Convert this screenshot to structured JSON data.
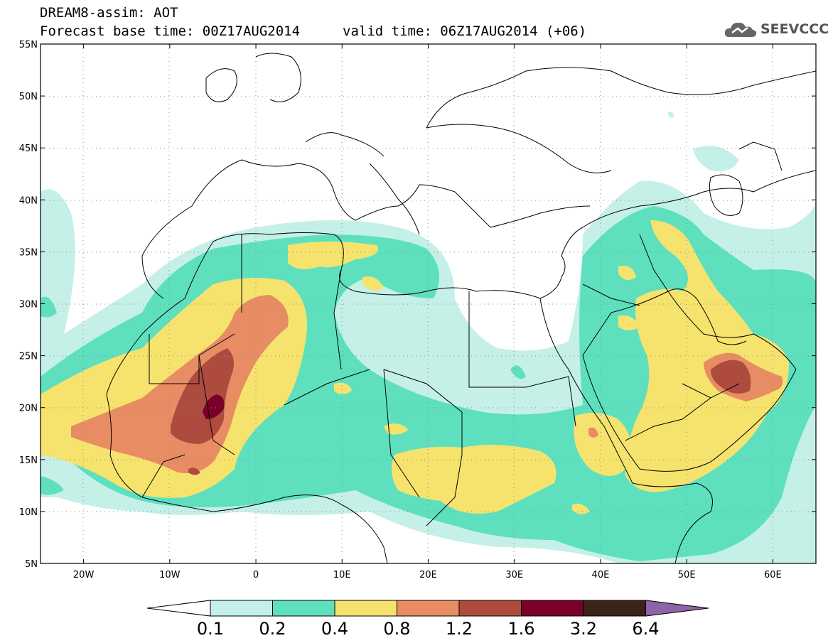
{
  "title": {
    "line1": "DREAM8-assim: AOT",
    "line2": "Forecast base time: 00Z17AUG2014",
    "valid": "valid time: 06Z17AUG2014 (+06)"
  },
  "logo": {
    "text": "SEEVCCC",
    "icon": "cloud-icon"
  },
  "map": {
    "lat_ticks": [
      "55N",
      "50N",
      "45N",
      "40N",
      "35N",
      "30N",
      "25N",
      "20N",
      "15N",
      "10N",
      "5N"
    ],
    "lat_values": [
      55,
      50,
      45,
      40,
      35,
      30,
      25,
      20,
      15,
      10,
      5
    ],
    "lon_ticks": [
      "20W",
      "10W",
      "0",
      "10E",
      "20E",
      "30E",
      "40E",
      "50E",
      "60E"
    ],
    "lon_values": [
      -20,
      -10,
      0,
      10,
      20,
      30,
      40,
      50,
      60
    ],
    "lon_range": [
      -25,
      65
    ],
    "lat_range": [
      5,
      55
    ]
  },
  "colorbar": {
    "labels": [
      "0.1",
      "0.2",
      "0.4",
      "0.8",
      "1.2",
      "1.6",
      "3.2",
      "6.4"
    ],
    "colors": [
      "#ffffff",
      "#c4f0e8",
      "#5ee0bf",
      "#f5e36e",
      "#e88c63",
      "#ad4b3f",
      "#7b0029",
      "#3a2418",
      "#8d64a8"
    ]
  }
}
